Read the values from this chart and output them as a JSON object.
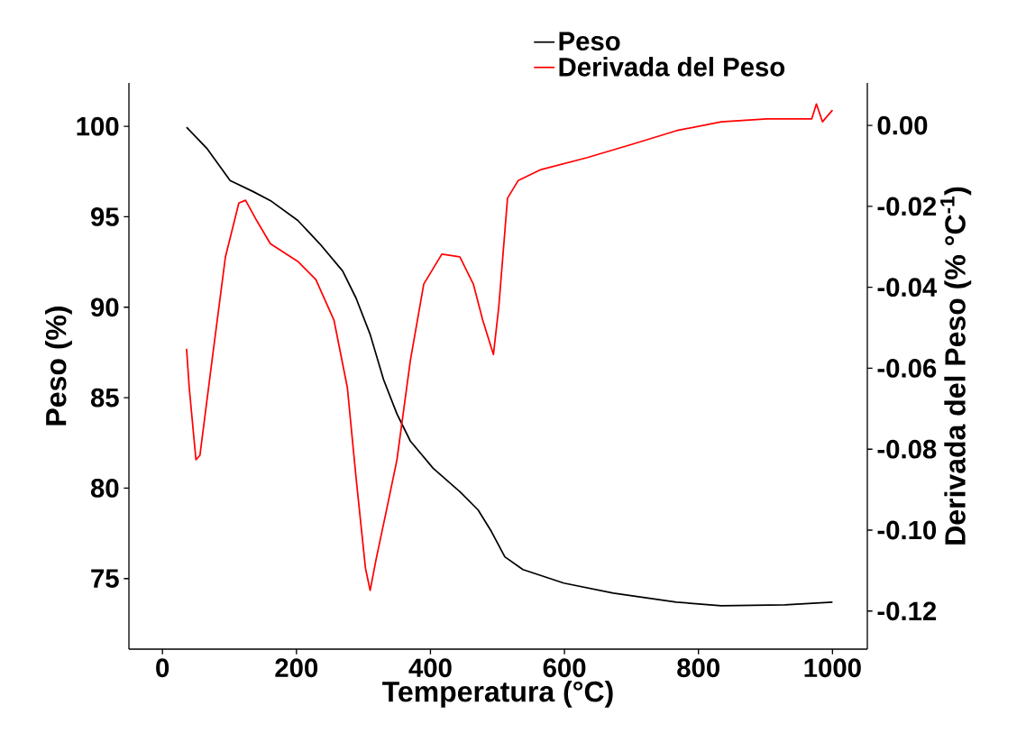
{
  "chart_data": {
    "type": "line",
    "xlabel": "Temperatura (°C)",
    "ylabel": "Peso (%)",
    "y2label": "Derivada del Peso (% °C$^{-1}$)",
    "xlim": [
      -50,
      1052
    ],
    "xticks": [
      0,
      200,
      400,
      600,
      800,
      1000
    ],
    "ylim": [
      71.1,
      102.4
    ],
    "yticks": [
      75,
      80,
      85,
      90,
      95,
      100
    ],
    "y2lim": [
      -0.1294,
      0.0105
    ],
    "y2ticks": [
      {
        "value": 0,
        "label": "0.00"
      },
      {
        "value": -0.02,
        "label": "-0.02"
      },
      {
        "value": -0.04,
        "label": "-0.04"
      },
      {
        "value": -0.06,
        "label": "-0.06"
      },
      {
        "value": -0.08,
        "label": "-0.08"
      },
      {
        "value": -0.1,
        "label": "-0.10"
      },
      {
        "value": -0.12,
        "label": "-0.12"
      }
    ],
    "legend": "top",
    "grid": false,
    "series": [
      {
        "name": "Peso",
        "color": "#000000",
        "x": [
          36,
          67,
          101,
          135,
          161,
          202,
          235,
          269,
          289,
          310,
          330,
          350,
          370,
          404,
          444,
          471,
          491,
          511,
          538,
          599,
          673,
          767,
          834,
          929,
          1000
        ],
        "values": [
          99.95,
          98.75,
          97.0,
          96.4,
          95.9,
          94.8,
          93.5,
          92.0,
          90.5,
          88.5,
          86.0,
          84.1,
          82.6,
          81.1,
          79.8,
          78.8,
          77.6,
          76.2,
          75.5,
          74.75,
          74.2,
          73.7,
          73.5,
          73.55,
          73.7
        ]
      },
      {
        "name": "Derivada del Peso",
        "color": "#ff0000",
        "axis": "y2",
        "x": [
          36,
          40,
          50,
          56,
          74,
          94,
          114,
          124,
          141,
          161,
          202,
          229,
          256,
          276,
          289,
          303,
          310,
          319,
          336,
          350,
          370,
          390,
          417,
          444,
          464,
          478,
          494,
          502,
          515,
          531,
          565,
          633,
          700,
          767,
          834,
          902,
          969,
          976,
          985,
          1000
        ],
        "values": [
          -0.0552,
          -0.0648,
          -0.0826,
          -0.0815,
          -0.0581,
          -0.0325,
          -0.0192,
          -0.0185,
          -0.0236,
          -0.0292,
          -0.0336,
          -0.0381,
          -0.0481,
          -0.0648,
          -0.0871,
          -0.1094,
          -0.1149,
          -0.1071,
          -0.0938,
          -0.0826,
          -0.0581,
          -0.0392,
          -0.0318,
          -0.0325,
          -0.0392,
          -0.0481,
          -0.0566,
          -0.0448,
          -0.018,
          -0.0136,
          -0.0109,
          -0.008,
          -0.0047,
          -0.0013,
          0.0009,
          0.0016,
          0.0016,
          0.0053,
          0.0009,
          0.0038
        ]
      }
    ]
  }
}
